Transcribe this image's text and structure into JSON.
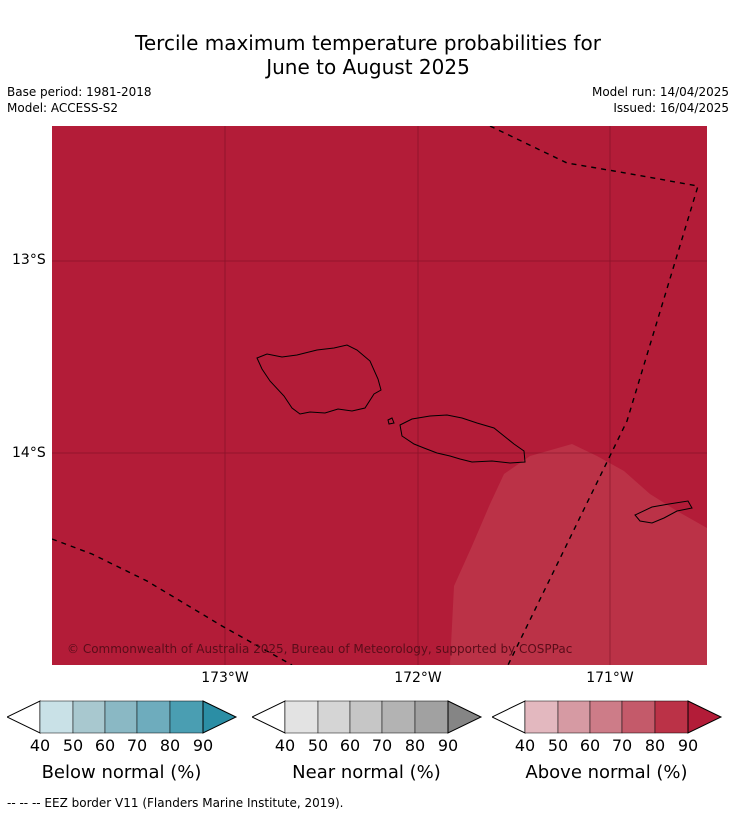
{
  "title_line1": "Tercile maximum temperature probabilities for",
  "title_line2": "June to August 2025",
  "meta": {
    "base_period": "Base period: 1981-2018",
    "model": "Model: ACCESS-S2",
    "model_run": "Model run: 14/04/2025",
    "issued": "Issued: 16/04/2025"
  },
  "map": {
    "latitudes": [
      "13°S",
      "14°S"
    ],
    "longitudes": [
      "173°W",
      "172°W",
      "171°W"
    ],
    "attribution": "© Commonwealth of Australia 2025, Bureau of Meteorology, supported by COSPPac",
    "colors": {
      "above_90": "#b31c38",
      "above_80": "#bb3247",
      "border": "#000000"
    }
  },
  "legends": [
    {
      "label": "Below normal (%)",
      "ticks": [
        "40",
        "50",
        "60",
        "70",
        "80",
        "90"
      ],
      "colors": [
        "#ffffff",
        "#c9e1e7",
        "#a8c8cf",
        "#8ab8c4",
        "#6eacbd",
        "#4a9eb2",
        "#2b8ea5"
      ]
    },
    {
      "label": "Near normal (%)",
      "ticks": [
        "40",
        "50",
        "60",
        "70",
        "80",
        "90"
      ],
      "colors": [
        "#ffffff",
        "#e3e3e3",
        "#d5d5d5",
        "#c6c6c6",
        "#b3b3b3",
        "#a1a1a1",
        "#858585"
      ]
    },
    {
      "label": "Above normal (%)",
      "ticks": [
        "40",
        "50",
        "60",
        "70",
        "80",
        "90"
      ],
      "colors": [
        "#ffffff",
        "#e3b8bf",
        "#d69aa3",
        "#cd7c88",
        "#c45a6a",
        "#bb3247",
        "#b31c38"
      ]
    }
  ],
  "footer": "--  --  -- EEZ border V11 (Flanders Marine Institute, 2019)."
}
